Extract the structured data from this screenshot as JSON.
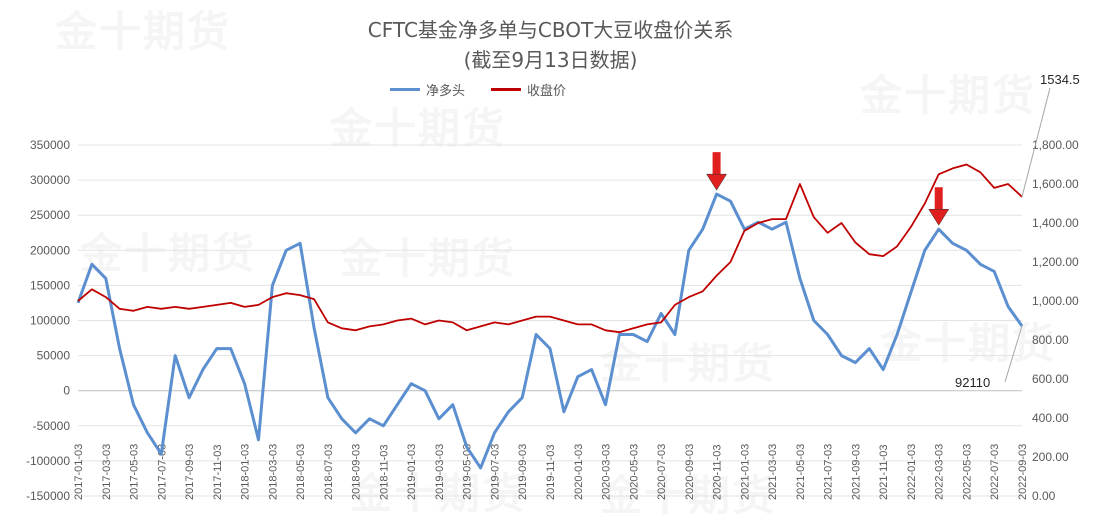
{
  "watermark": "金十期货",
  "chart_data": {
    "type": "line",
    "title": "CFTC基金净多单与CBOT大豆收盘价关系",
    "subtitle": "(截至9月13日数据)",
    "legend_position": "top",
    "left_axis": {
      "range": [
        -150000,
        350000
      ],
      "ticks": [
        "-150000",
        "-100000",
        "-50000",
        "0",
        "50000",
        "100000",
        "150000",
        "200000",
        "250000",
        "300000",
        "350000"
      ]
    },
    "right_axis": {
      "range": [
        0,
        1800
      ],
      "ticks": [
        "0.00",
        "200.00",
        "400.00",
        "600.00",
        "800.00",
        "1,000.00",
        "1,200.00",
        "1,400.00",
        "1,600.00",
        "1,800.00"
      ]
    },
    "x_ticks": [
      "2017-01-03",
      "2017-03-03",
      "2017-05-03",
      "2017-07-03",
      "2017-09-03",
      "2017-11-03",
      "2018-01-03",
      "2018-03-03",
      "2018-05-03",
      "2018-07-03",
      "2018-09-03",
      "2018-11-03",
      "2019-01-03",
      "2019-03-03",
      "2019-05-03",
      "2019-07-03",
      "2019-09-03",
      "2019-11-03",
      "2020-01-03",
      "2020-03-03",
      "2020-05-03",
      "2020-07-03",
      "2020-09-03",
      "2020-11-03",
      "2021-01-03",
      "2021-03-03",
      "2021-05-03",
      "2021-07-03",
      "2021-09-03",
      "2021-11-03",
      "2022-01-03",
      "2022-03-03",
      "2022-05-03",
      "2022-07-03",
      "2022-09-03"
    ],
    "x": [
      "2017-01",
      "2017-02",
      "2017-03",
      "2017-04",
      "2017-05",
      "2017-06",
      "2017-07",
      "2017-08",
      "2017-09",
      "2017-10",
      "2017-11",
      "2017-12",
      "2018-01",
      "2018-02",
      "2018-03",
      "2018-04",
      "2018-05",
      "2018-06",
      "2018-07",
      "2018-08",
      "2018-09",
      "2018-10",
      "2018-11",
      "2018-12",
      "2019-01",
      "2019-02",
      "2019-03",
      "2019-04",
      "2019-05",
      "2019-06",
      "2019-07",
      "2019-08",
      "2019-09",
      "2019-10",
      "2019-11",
      "2019-12",
      "2020-01",
      "2020-02",
      "2020-03",
      "2020-04",
      "2020-05",
      "2020-06",
      "2020-07",
      "2020-08",
      "2020-09",
      "2020-10",
      "2020-11",
      "2020-12",
      "2021-01",
      "2021-02",
      "2021-03",
      "2021-04",
      "2021-05",
      "2021-06",
      "2021-07",
      "2021-08",
      "2021-09",
      "2021-10",
      "2021-11",
      "2021-12",
      "2022-01",
      "2022-02",
      "2022-03",
      "2022-04",
      "2022-05",
      "2022-06",
      "2022-07",
      "2022-08",
      "2022-09"
    ],
    "series": [
      {
        "name": "净多头",
        "axis": "left",
        "color": "#5b8fd0",
        "values": [
          125000,
          180000,
          160000,
          60000,
          -20000,
          -60000,
          -90000,
          50000,
          -10000,
          30000,
          60000,
          60000,
          10000,
          -70000,
          150000,
          200000,
          210000,
          90000,
          -10000,
          -40000,
          -60000,
          -40000,
          -50000,
          -20000,
          10000,
          0,
          -40000,
          -20000,
          -80000,
          -110000,
          -60000,
          -30000,
          -10000,
          80000,
          60000,
          -30000,
          20000,
          30000,
          -20000,
          80000,
          80000,
          70000,
          110000,
          80000,
          200000,
          230000,
          280000,
          270000,
          230000,
          240000,
          230000,
          240000,
          160000,
          100000,
          80000,
          50000,
          40000,
          60000,
          30000,
          80000,
          140000,
          200000,
          230000,
          210000,
          200000,
          180000,
          170000,
          120000,
          92110
        ]
      },
      {
        "name": "收盘价",
        "axis": "right",
        "color": "#c00000",
        "values": [
          1000,
          1060,
          1020,
          960,
          950,
          970,
          960,
          970,
          960,
          970,
          980,
          990,
          970,
          980,
          1020,
          1040,
          1030,
          1010,
          890,
          860,
          850,
          870,
          880,
          900,
          910,
          880,
          900,
          890,
          850,
          870,
          890,
          880,
          900,
          920,
          920,
          900,
          880,
          880,
          850,
          840,
          860,
          880,
          890,
          980,
          1020,
          1050,
          1130,
          1200,
          1360,
          1400,
          1420,
          1420,
          1600,
          1430,
          1350,
          1400,
          1300,
          1240,
          1230,
          1280,
          1380,
          1500,
          1650,
          1680,
          1700,
          1660,
          1580,
          1600,
          1534.5
        ]
      }
    ],
    "annotations": [
      "1534.5",
      "92110"
    ],
    "grid": true
  }
}
